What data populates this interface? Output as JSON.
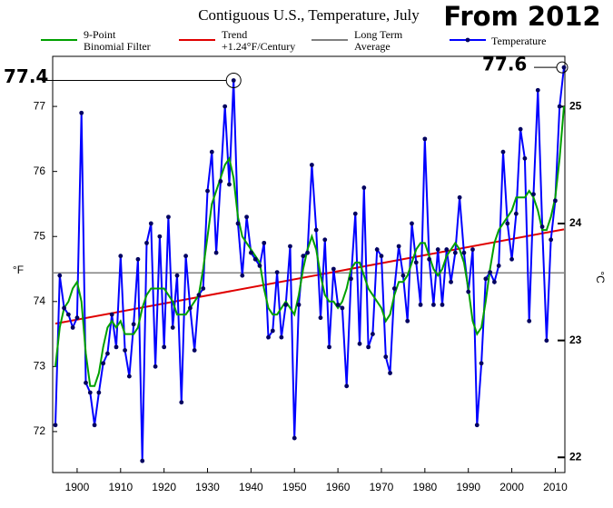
{
  "chart_data": {
    "type": "line",
    "title": "Contiguous U.S., Temperature, July",
    "y_label": "°F",
    "y2_label": "°C",
    "x": [
      1895,
      1896,
      1897,
      1898,
      1899,
      1900,
      1901,
      1902,
      1903,
      1904,
      1905,
      1906,
      1907,
      1908,
      1909,
      1910,
      1911,
      1912,
      1913,
      1914,
      1915,
      1916,
      1917,
      1918,
      1919,
      1920,
      1921,
      1922,
      1923,
      1924,
      1925,
      1926,
      1927,
      1928,
      1929,
      1930,
      1931,
      1932,
      1933,
      1934,
      1935,
      1936,
      1937,
      1938,
      1939,
      1940,
      1941,
      1942,
      1943,
      1944,
      1945,
      1946,
      1947,
      1948,
      1949,
      1950,
      1951,
      1952,
      1953,
      1954,
      1955,
      1956,
      1957,
      1958,
      1959,
      1960,
      1961,
      1962,
      1963,
      1964,
      1965,
      1966,
      1967,
      1968,
      1969,
      1970,
      1971,
      1972,
      1973,
      1974,
      1975,
      1976,
      1977,
      1978,
      1979,
      1980,
      1981,
      1982,
      1983,
      1984,
      1985,
      1986,
      1987,
      1988,
      1989,
      1990,
      1991,
      1992,
      1993,
      1994,
      1995,
      1996,
      1997,
      1998,
      1999,
      2000,
      2001,
      2002,
      2003,
      2004,
      2005,
      2006,
      2007,
      2008,
      2009,
      2010,
      2011,
      2012
    ],
    "series": [
      {
        "name": "9-Point\nBinomial Filter",
        "color": "#00a000",
        "values": [
          73.0,
          73.6,
          73.9,
          74.0,
          74.2,
          74.3,
          74.0,
          73.2,
          72.7,
          72.7,
          72.9,
          73.3,
          73.6,
          73.7,
          73.6,
          73.7,
          73.5,
          73.5,
          73.5,
          73.6,
          73.9,
          74.1,
          74.2,
          74.2,
          74.2,
          74.2,
          74.1,
          74.0,
          73.8,
          73.8,
          73.8,
          73.9,
          74.0,
          74.1,
          74.5,
          75.0,
          75.5,
          75.7,
          75.9,
          76.1,
          76.2,
          75.9,
          75.3,
          75.0,
          74.9,
          74.8,
          74.7,
          74.6,
          74.2,
          73.9,
          73.8,
          73.8,
          73.9,
          74.0,
          73.9,
          73.8,
          74.1,
          74.5,
          74.8,
          75.0,
          74.8,
          74.4,
          74.1,
          74.0,
          74.0,
          73.9,
          74.0,
          74.2,
          74.5,
          74.6,
          74.6,
          74.4,
          74.2,
          74.1,
          74.0,
          73.9,
          73.7,
          73.8,
          74.1,
          74.3,
          74.3,
          74.4,
          74.6,
          74.8,
          74.9,
          74.9,
          74.7,
          74.5,
          74.4,
          74.5,
          74.7,
          74.8,
          74.9,
          74.8,
          74.6,
          74.2,
          73.7,
          73.5,
          73.6,
          74.0,
          74.5,
          74.9,
          75.1,
          75.2,
          75.3,
          75.4,
          75.6,
          75.6,
          75.6,
          75.7,
          75.6,
          75.4,
          75.1,
          75.1,
          75.3,
          75.6,
          76.2,
          77.0
        ]
      },
      {
        "name": "Temperature",
        "color": "#0000ff",
        "marker_color": "#000060",
        "values": [
          72.1,
          74.4,
          73.9,
          73.8,
          73.6,
          73.75,
          76.9,
          72.75,
          72.6,
          72.1,
          72.6,
          73.05,
          73.2,
          73.8,
          73.3,
          74.7,
          73.25,
          72.85,
          73.65,
          74.65,
          71.55,
          74.9,
          75.2,
          73.0,
          75.0,
          73.3,
          75.3,
          73.6,
          74.4,
          72.45,
          74.7,
          73.9,
          73.25,
          74.1,
          74.2,
          75.7,
          76.3,
          74.75,
          75.85,
          77.0,
          75.8,
          77.4,
          75.2,
          74.4,
          75.3,
          74.75,
          74.65,
          74.55,
          74.9,
          73.45,
          73.55,
          74.45,
          73.45,
          73.95,
          74.85,
          71.9,
          73.95,
          74.7,
          74.75,
          76.1,
          75.1,
          73.75,
          74.95,
          73.3,
          74.5,
          73.95,
          73.9,
          72.7,
          74.35,
          75.35,
          73.35,
          75.75,
          73.3,
          73.5,
          74.8,
          74.7,
          73.15,
          72.9,
          74.2,
          74.85,
          74.4,
          73.7,
          75.2,
          74.6,
          73.95,
          76.5,
          74.65,
          73.95,
          74.8,
          73.95,
          74.8,
          74.3,
          74.75,
          75.6,
          74.75,
          74.15,
          74.8,
          72.1,
          73.05,
          74.35,
          74.45,
          74.3,
          74.55,
          76.3,
          75.2,
          74.65,
          75.35,
          76.65,
          76.2,
          73.7,
          75.65,
          77.25,
          75.15,
          73.4,
          74.95,
          75.55,
          77.0,
          77.6
        ]
      }
    ],
    "trend": {
      "name": "Trend\n+1.24°F/Century",
      "color": "#e00000",
      "x": [
        1895,
        2012
      ],
      "values": [
        73.66,
        75.11
      ]
    },
    "average": {
      "name": "Long Term\nAverage",
      "color": "#808080",
      "value": 74.44
    },
    "xlim": [
      1895,
      2012
    ],
    "xticks": [
      1900,
      1910,
      1920,
      1930,
      1940,
      1950,
      1960,
      1970,
      1980,
      1990,
      2000,
      2010
    ],
    "ylim": [
      71.37,
      77.77
    ],
    "yticks": [
      72,
      73,
      74,
      75,
      76,
      77
    ],
    "y2lim": [
      21.87,
      25.43
    ],
    "y2ticks": [
      22,
      23,
      24,
      25
    ],
    "annotations": [
      {
        "text": "77.4"
      },
      {
        "text": "77.6"
      },
      {
        "text": "From 2012"
      }
    ]
  }
}
